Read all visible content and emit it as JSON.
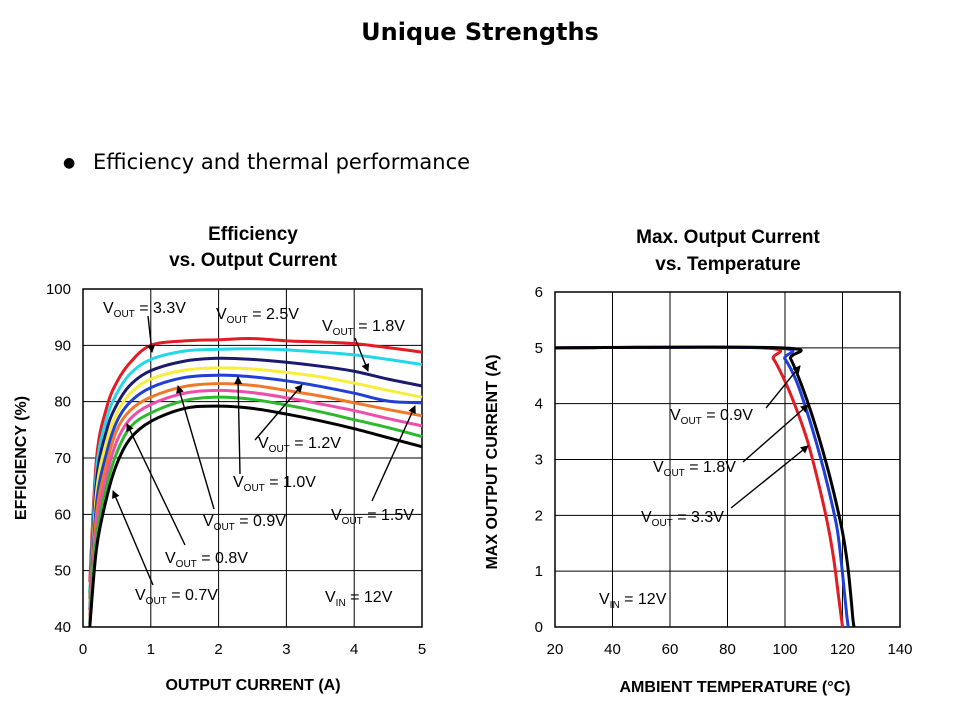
{
  "slide": {
    "title": "Unique Strengths",
    "bullet_text": "Efficiency and thermal performance"
  },
  "chart_data": [
    {
      "type": "line",
      "title_line1": "Efficiency",
      "title_line2": "vs. Output Current",
      "xlabel": "OUTPUT CURRENT (A)",
      "ylabel": "EFFICIENCY (%)",
      "xlim": [
        0,
        5
      ],
      "ylim": [
        40,
        100
      ],
      "xticks": [
        0,
        1,
        2,
        3,
        4,
        5
      ],
      "yticks": [
        40,
        50,
        60,
        70,
        80,
        90,
        100
      ],
      "grid": true,
      "series": [
        {
          "name": "VOUT = 3.3V",
          "color": "#e31b23",
          "x": [
            0.1,
            0.2,
            0.35,
            0.5,
            0.7,
            1.0,
            1.5,
            2.0,
            2.5,
            3.0,
            3.5,
            4.0,
            4.5,
            5.0
          ],
          "y": [
            48,
            70,
            79,
            83.5,
            87,
            90,
            90.8,
            91,
            91.2,
            90.8,
            90.6,
            90.3,
            89.6,
            88.8
          ]
        },
        {
          "name": "VOUT = 2.5V",
          "color": "#22d8e8",
          "x": [
            0.1,
            0.2,
            0.35,
            0.5,
            0.7,
            1.0,
            1.5,
            2.0,
            2.5,
            3.0,
            3.5,
            4.0,
            4.5,
            5.0
          ],
          "y": [
            46,
            68,
            77,
            81.5,
            85,
            87.5,
            89,
            89.3,
            89.4,
            89.2,
            88.8,
            88.3,
            87.5,
            86.6
          ]
        },
        {
          "name": "VOUT = 1.8V",
          "color": "#1a1a6e",
          "x": [
            0.1,
            0.2,
            0.35,
            0.5,
            0.7,
            1.0,
            1.5,
            2.0,
            2.5,
            3.0,
            3.5,
            4.0,
            4.5,
            5.0
          ],
          "y": [
            45,
            66,
            75,
            79.5,
            83,
            85.5,
            87.2,
            87.7,
            87.5,
            87,
            86.3,
            85.4,
            84,
            82.8
          ]
        },
        {
          "name": "VOUT = 1.5V",
          "color": "#f6ee3a",
          "x": [
            0.1,
            0.2,
            0.35,
            0.5,
            0.7,
            1.0,
            1.5,
            2.0,
            2.5,
            3.0,
            3.5,
            4.0,
            4.5,
            5.0
          ],
          "y": [
            44,
            64,
            73,
            78,
            81.5,
            84,
            85.6,
            86,
            85.8,
            85.2,
            84.4,
            83.3,
            82,
            80.8
          ]
        },
        {
          "name": "VOUT = 1.2V",
          "color": "#1f3fd6",
          "x": [
            0.1,
            0.2,
            0.35,
            0.5,
            0.7,
            1.0,
            1.5,
            2.0,
            2.5,
            3.0,
            3.5,
            4.0,
            4.5,
            5.0
          ],
          "y": [
            43,
            62,
            71,
            76.5,
            80,
            82.5,
            84.3,
            84.7,
            84.4,
            83.7,
            82.7,
            81.5,
            80.1,
            79.8
          ]
        },
        {
          "name": "VOUT = 1.0V",
          "color": "#f0782a",
          "x": [
            0.1,
            0.2,
            0.35,
            0.5,
            0.7,
            1.0,
            1.5,
            2.0,
            2.5,
            3.0,
            3.5,
            4.0,
            4.5,
            5.0
          ],
          "y": [
            42,
            60,
            69,
            75,
            78.5,
            80.8,
            82.7,
            83.2,
            82.9,
            82,
            81,
            79.8,
            78.6,
            77.5
          ]
        },
        {
          "name": "VOUT = 0.9V",
          "color": "#ee4ea8",
          "x": [
            0.1,
            0.2,
            0.35,
            0.5,
            0.7,
            1.0,
            1.5,
            2.0,
            2.5,
            3.0,
            3.5,
            4.0,
            4.5,
            5.0
          ],
          "y": [
            41,
            58,
            67,
            73,
            77,
            79.5,
            81.5,
            82,
            81.6,
            80.7,
            79.6,
            78.4,
            77,
            75.7
          ]
        },
        {
          "name": "VOUT = 0.8V",
          "color": "#2db82d",
          "x": [
            0.1,
            0.2,
            0.35,
            0.5,
            0.7,
            1.0,
            1.5,
            2.0,
            2.5,
            3.0,
            3.5,
            4.0,
            4.5,
            5.0
          ],
          "y": [
            40.5,
            56,
            65,
            71,
            75.5,
            78,
            80.2,
            80.8,
            80.4,
            79.4,
            78.2,
            76.8,
            75.4,
            73.8
          ]
        },
        {
          "name": "VOUT = 0.7V",
          "color": "#000000",
          "x": [
            0.1,
            0.2,
            0.35,
            0.5,
            0.7,
            1.0,
            1.5,
            2.0,
            2.5,
            3.0,
            3.5,
            4.0,
            4.5,
            5.0
          ],
          "y": [
            40,
            54,
            63,
            69,
            73.5,
            76.5,
            78.8,
            79.2,
            78.8,
            77.8,
            76.6,
            75.2,
            73.6,
            72
          ]
        }
      ],
      "annotations": [
        {
          "vout": "3.3V"
        },
        {
          "vout": "2.5V"
        },
        {
          "vout": "1.8V"
        },
        {
          "vout": "1.2V"
        },
        {
          "vout": "1.0V"
        },
        {
          "vout": "0.9V"
        },
        {
          "vout": "1.5V"
        },
        {
          "vout": "0.8V"
        },
        {
          "vout": "0.7V"
        }
      ],
      "vin_note": {
        "main": "V",
        "sub": "IN",
        "rest": " = 12V"
      }
    },
    {
      "type": "line",
      "title_line1": "Max. Output Current",
      "title_line2": "vs. Temperature",
      "xlabel": "AMBIENT TEMPERATURE (°C)",
      "ylabel": "MAX OUTPUT CURRENT (A)",
      "xlim": [
        20,
        140
      ],
      "ylim": [
        0,
        6
      ],
      "xticks": [
        20,
        40,
        60,
        80,
        100,
        120,
        140
      ],
      "yticks": [
        0,
        1,
        2,
        3,
        4,
        5,
        6
      ],
      "grid": true,
      "series": [
        {
          "name": "VOUT = 3.3V",
          "color": "#e31b23",
          "x": [
            20,
            92,
            96,
            100,
            104,
            108,
            112,
            115,
            117,
            118.5,
            119.5,
            120
          ],
          "y": [
            5,
            5,
            4.8,
            4.4,
            3.9,
            3.3,
            2.5,
            1.8,
            1.2,
            0.6,
            0.2,
            0
          ]
        },
        {
          "name": "VOUT = 1.8V",
          "color": "#1f3fd6",
          "x": [
            20,
            96,
            100,
            104,
            108,
            112,
            115,
            118,
            119.5,
            120.7,
            121.5,
            122
          ],
          "y": [
            5,
            5,
            4.8,
            4.4,
            3.8,
            3.1,
            2.5,
            1.8,
            1.2,
            0.6,
            0.2,
            0
          ]
        },
        {
          "name": "VOUT = 0.9V",
          "color": "#000000",
          "x": [
            20,
            99,
            102,
            106,
            110,
            114,
            117,
            120,
            121.8,
            123,
            123.6,
            124
          ],
          "y": [
            5,
            5,
            4.8,
            4.3,
            3.7,
            3,
            2.4,
            1.7,
            1.1,
            0.5,
            0.15,
            0
          ]
        }
      ],
      "annotations": [
        {
          "vout": "0.9V"
        },
        {
          "vout": "1.8V"
        },
        {
          "vout": "3.3V"
        }
      ],
      "vin_note": {
        "main": "V",
        "sub": "IN",
        "rest": " = 12V"
      }
    }
  ]
}
